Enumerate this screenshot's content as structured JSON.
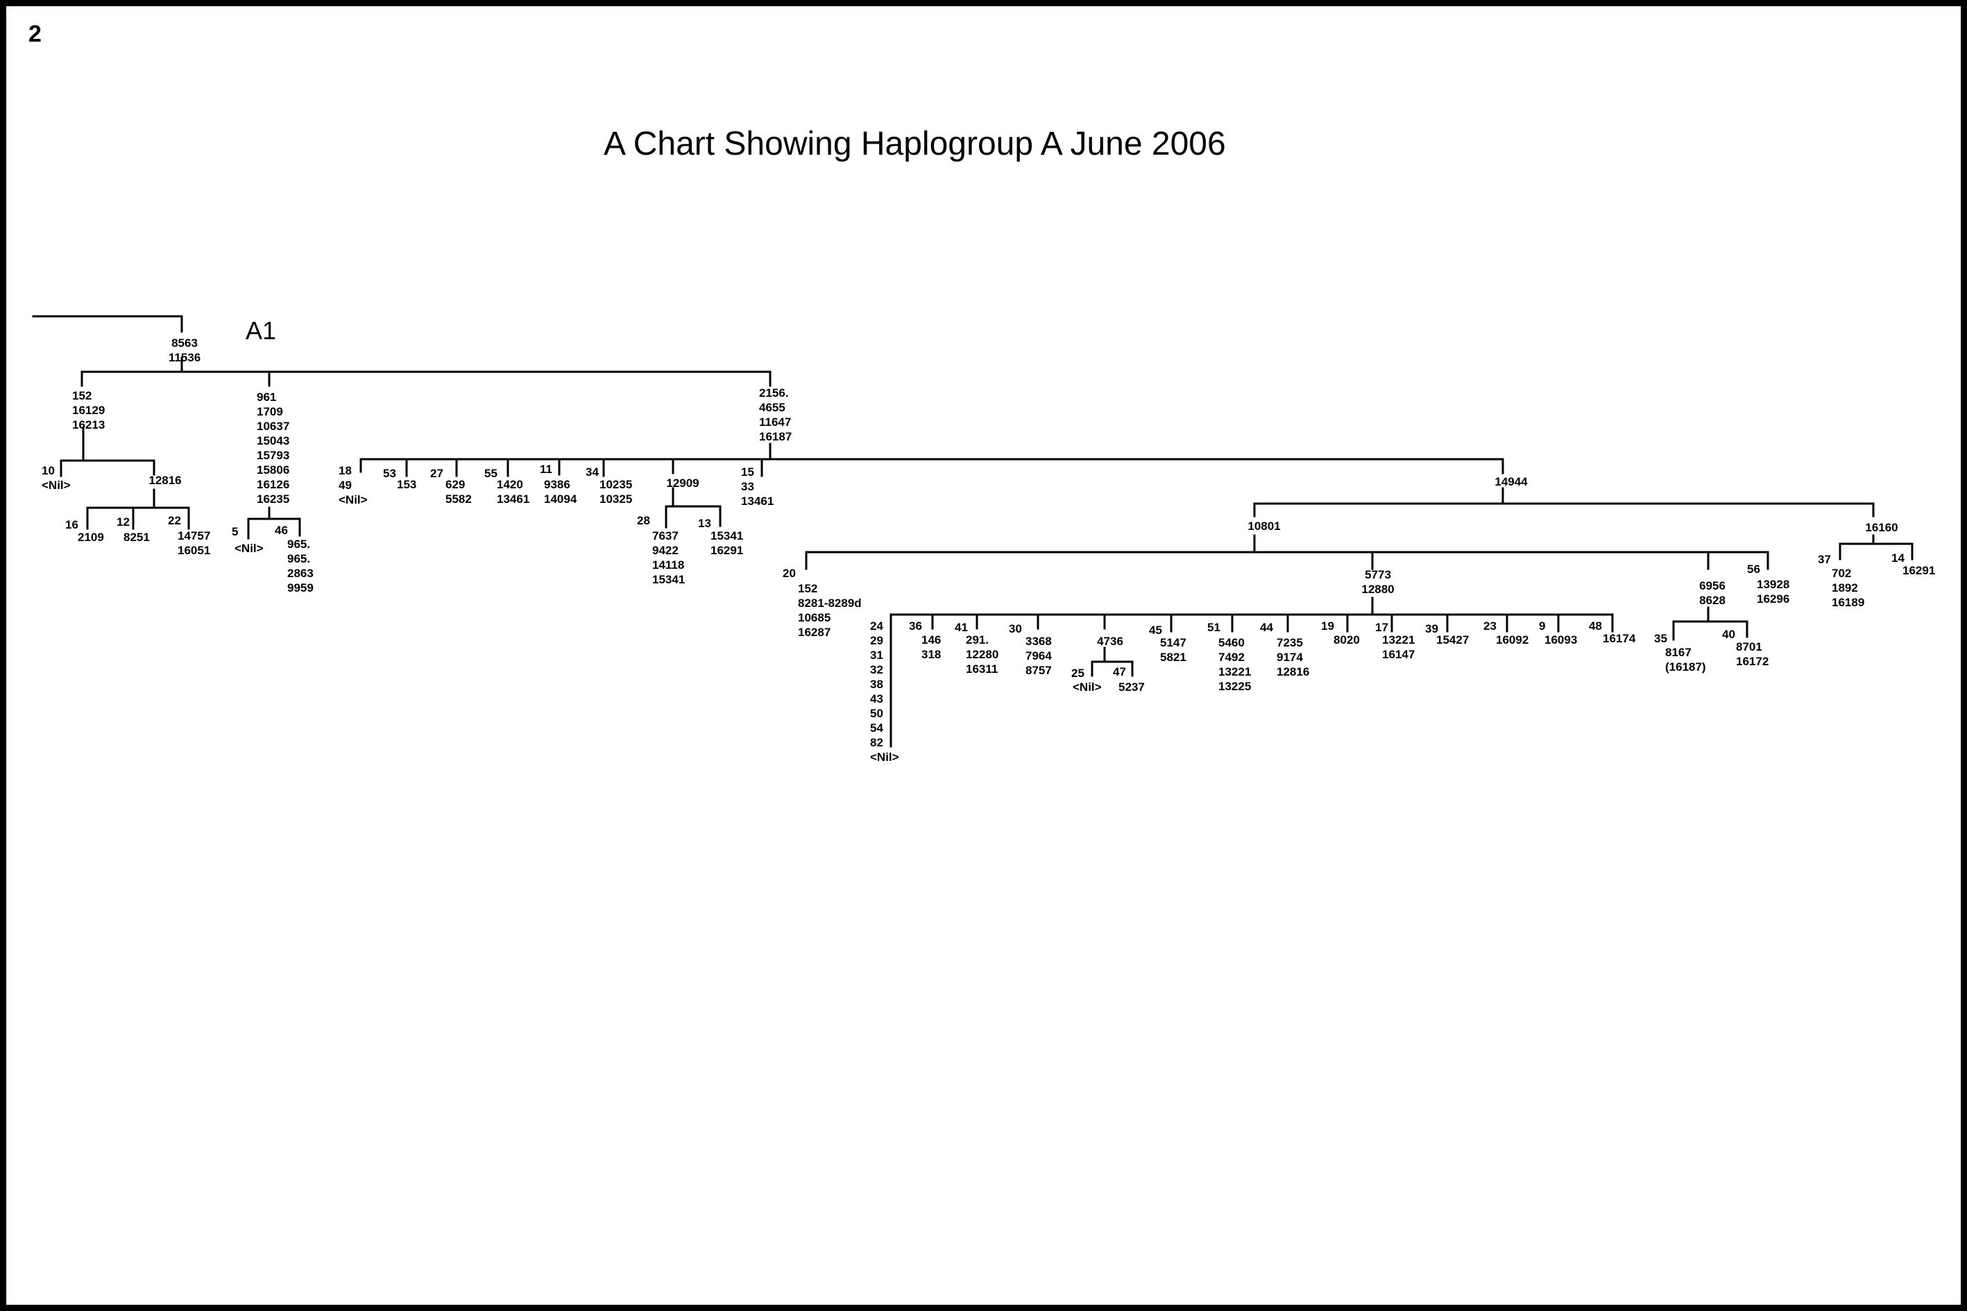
{
  "page_number": "2",
  "title": "A Chart Showing Haplogroup A  June 2006",
  "clade_label": "A1",
  "nodes": [
    {
      "lines": [
        "8563",
        "11536"
      ]
    },
    {
      "lines": [
        "152",
        "16129",
        "16213"
      ]
    },
    {
      "lines": [
        "10",
        "<Nil>"
      ]
    },
    {
      "lines": [
        "12816"
      ]
    },
    {
      "lines": [
        "16"
      ]
    },
    {
      "lines": [
        "2109"
      ]
    },
    {
      "lines": [
        "12"
      ]
    },
    {
      "lines": [
        "8251"
      ]
    },
    {
      "lines": [
        "22"
      ]
    },
    {
      "lines": [
        "14757",
        "16051"
      ]
    },
    {
      "lines": [
        "961",
        "1709",
        "10637",
        "15043",
        "15793",
        "15806",
        "16126",
        "16235"
      ]
    },
    {
      "lines": [
        "5"
      ]
    },
    {
      "lines": [
        "<Nil>"
      ]
    },
    {
      "lines": [
        "46"
      ]
    },
    {
      "lines": [
        "965.",
        "965.",
        "2863",
        "9959"
      ]
    },
    {
      "lines": [
        "2156.",
        "4655",
        "11647",
        "16187"
      ]
    },
    {
      "lines": [
        "18",
        "49",
        "<Nil>"
      ]
    },
    {
      "lines": [
        "53"
      ]
    },
    {
      "lines": [
        "153"
      ]
    },
    {
      "lines": [
        "27"
      ]
    },
    {
      "lines": [
        "629",
        "5582"
      ]
    },
    {
      "lines": [
        "55"
      ]
    },
    {
      "lines": [
        "1420",
        "13461"
      ]
    },
    {
      "lines": [
        "11"
      ]
    },
    {
      "lines": [
        "9386",
        "14094"
      ]
    },
    {
      "lines": [
        "34"
      ]
    },
    {
      "lines": [
        "10235",
        "10325"
      ]
    },
    {
      "lines": [
        "12909"
      ]
    },
    {
      "lines": [
        "28"
      ]
    },
    {
      "lines": [
        "7637",
        "9422",
        "14118",
        "15341"
      ]
    },
    {
      "lines": [
        "13"
      ]
    },
    {
      "lines": [
        "15341",
        "16291"
      ]
    },
    {
      "lines": [
        "15",
        "33",
        "13461"
      ]
    },
    {
      "lines": [
        "14944"
      ]
    },
    {
      "lines": [
        "10801"
      ]
    },
    {
      "lines": [
        "16160"
      ]
    },
    {
      "lines": [
        "37"
      ]
    },
    {
      "lines": [
        "702",
        "1892",
        "16189"
      ]
    },
    {
      "lines": [
        "14"
      ]
    },
    {
      "lines": [
        "16291"
      ]
    },
    {
      "lines": [
        "20"
      ]
    },
    {
      "lines": [
        "152",
        "8281-8289d",
        "10685",
        "16287"
      ]
    },
    {
      "lines": [
        "5773",
        "12880"
      ]
    },
    {
      "lines": [
        "6956",
        "8628"
      ]
    },
    {
      "lines": [
        "56"
      ]
    },
    {
      "lines": [
        "13928",
        "16296"
      ]
    },
    {
      "lines": [
        "35"
      ]
    },
    {
      "lines": [
        "8167",
        "(16187)"
      ]
    },
    {
      "lines": [
        "40"
      ]
    },
    {
      "lines": [
        "8701",
        "16172"
      ]
    },
    {
      "lines": [
        "24",
        "29",
        "31",
        "32",
        "38",
        "43",
        "50",
        "54",
        "82",
        "<Nil>"
      ]
    },
    {
      "lines": [
        "36"
      ]
    },
    {
      "lines": [
        "146",
        "318"
      ]
    },
    {
      "lines": [
        "41"
      ]
    },
    {
      "lines": [
        "291.",
        "12280",
        "16311"
      ]
    },
    {
      "lines": [
        "30"
      ]
    },
    {
      "lines": [
        "3368",
        "7964",
        "8757"
      ]
    },
    {
      "lines": [
        "4736"
      ]
    },
    {
      "lines": [
        "25"
      ]
    },
    {
      "lines": [
        "<Nil>"
      ]
    },
    {
      "lines": [
        "47"
      ]
    },
    {
      "lines": [
        "5237"
      ]
    },
    {
      "lines": [
        "45"
      ]
    },
    {
      "lines": [
        "5147",
        "5821"
      ]
    },
    {
      "lines": [
        "51"
      ]
    },
    {
      "lines": [
        "5460",
        "7492",
        "13221",
        "13225"
      ]
    },
    {
      "lines": [
        "44"
      ]
    },
    {
      "lines": [
        "7235",
        "9174",
        "12816"
      ]
    },
    {
      "lines": [
        "19"
      ]
    },
    {
      "lines": [
        "8020"
      ]
    },
    {
      "lines": [
        "17"
      ]
    },
    {
      "lines": [
        "13221",
        "16147"
      ]
    },
    {
      "lines": [
        "39"
      ]
    },
    {
      "lines": [
        "15427"
      ]
    },
    {
      "lines": [
        "23"
      ]
    },
    {
      "lines": [
        "16092"
      ]
    },
    {
      "lines": [
        "9"
      ]
    },
    {
      "lines": [
        "16093"
      ]
    },
    {
      "lines": [
        "48"
      ]
    },
    {
      "lines": [
        "16174"
      ]
    }
  ]
}
